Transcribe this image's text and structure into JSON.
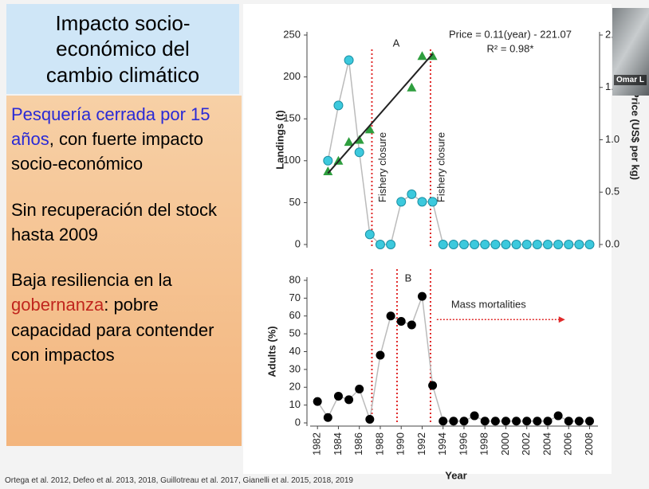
{
  "slide": {
    "title": "Impacto socio-económico del cambio climático",
    "points": [
      {
        "parts": [
          {
            "text": "Pesquería cerrada por 15 años",
            "color": "#2a2ad6"
          },
          {
            "text": ", con fuerte impacto socio-económico"
          }
        ]
      },
      {
        "parts": [
          {
            "text": "Sin recuperación del stock hasta 2009"
          }
        ]
      },
      {
        "parts": [
          {
            "text": "Baja resiliencia en la "
          },
          {
            "text": "gobernanza",
            "color": "#c0261e"
          },
          {
            "text": ": pobre capacidad para contender con impactos"
          }
        ]
      }
    ],
    "citation": "Ortega et al. 2012, Defeo et al. 2013, 2018, Guillotreau et al. 2017, Gianelli et al. 2015, 2018, 2019",
    "participant": "Omar L"
  },
  "chart_data": [
    {
      "type": "line",
      "panel_label": "A",
      "ylabel": "Landings (t)",
      "y2label": "Price (US$ per kg)",
      "equation": "Price = 0.11(year) - 221.07",
      "r2": "R² = 0.98*",
      "xlim": [
        1981.3,
        2008.8
      ],
      "ylim": [
        0,
        250
      ],
      "yticks": [
        0,
        50,
        100,
        150,
        200,
        250
      ],
      "y2lim": [
        0,
        2
      ],
      "y2ticks": [
        {
          "value": 0,
          "label": "0.0"
        },
        {
          "value": 0.5,
          "label": "0.5"
        },
        {
          "value": 1,
          "label": "1.0"
        },
        {
          "value": 1.5,
          "label": "1.5"
        },
        {
          "value": 2,
          "label": "2.0"
        }
      ],
      "series": [
        {
          "marker": "circle",
          "color": "#3cc9dd",
          "x": [
            1983,
            1984,
            1985,
            1986,
            1987,
            1988,
            1989,
            1990,
            1991,
            1992,
            1993,
            1994,
            1995,
            1996,
            1997,
            1998,
            1999,
            2000,
            2001,
            2002,
            2003,
            2004,
            2005,
            2006,
            2007,
            2008
          ],
          "values": [
            100,
            166,
            220,
            110,
            12,
            0,
            0,
            51,
            60,
            51,
            51,
            0,
            0,
            0,
            0,
            0,
            0,
            0,
            0,
            0,
            0,
            0,
            0,
            0,
            0,
            0
          ]
        },
        {
          "marker": "triangle",
          "color": "#2e9e3e",
          "axis": "y2",
          "x": [
            1983,
            1984,
            1985,
            1986,
            1987,
            1991,
            1992,
            1993
          ],
          "values": [
            0.7,
            0.8,
            0.98,
            1.0,
            1.1,
            1.5,
            1.8,
            1.8
          ]
        }
      ],
      "trendline": {
        "axis": "y2",
        "color": "#222222",
        "x": [
          1983,
          1993
        ],
        "values": [
          0.68,
          1.82
        ]
      },
      "closures": [
        {
          "x": 1987.2,
          "label": "Fishery closure"
        },
        {
          "x": 1992.8,
          "label": "Fishery closure"
        }
      ],
      "closure_color": "#e02a2a"
    },
    {
      "type": "line",
      "panel_label": "B",
      "ylabel": "Adults (%)",
      "xlabel": "Year",
      "xlim": [
        1981.3,
        2008.8
      ],
      "xticks": [
        1982,
        1984,
        1986,
        1988,
        1990,
        1992,
        1994,
        1996,
        1998,
        2000,
        2002,
        2004,
        2006,
        2008
      ],
      "ylim": [
        0,
        80
      ],
      "yticks": [
        0,
        10,
        20,
        30,
        40,
        50,
        60,
        70,
        80
      ],
      "series": [
        {
          "marker": "circle",
          "color": "#000000",
          "x": [
            1982,
            1983,
            1984,
            1985,
            1986,
            1987,
            1988,
            1989,
            1990,
            1991,
            1992,
            1993,
            1994,
            1995,
            1996,
            1997,
            1998,
            1999,
            2000,
            2001,
            2002,
            2003,
            2004,
            2005,
            2006,
            2007,
            2008
          ],
          "values": [
            12,
            3,
            15,
            13,
            19,
            2,
            38,
            60,
            57,
            55,
            71,
            21,
            1,
            1,
            1,
            4,
            1,
            1,
            1,
            1,
            1,
            1,
            1,
            4,
            1,
            1,
            1
          ]
        }
      ],
      "closures": [
        {
          "x": 1987.2
        },
        {
          "x": 1989.6
        },
        {
          "x": 1992.8
        }
      ],
      "closure_color": "#e02a2a",
      "annotation": {
        "text": "Mass mortalities",
        "color": "#e02a2a",
        "x": [
          1993.4,
          2005.2
        ],
        "y": 58
      }
    }
  ]
}
